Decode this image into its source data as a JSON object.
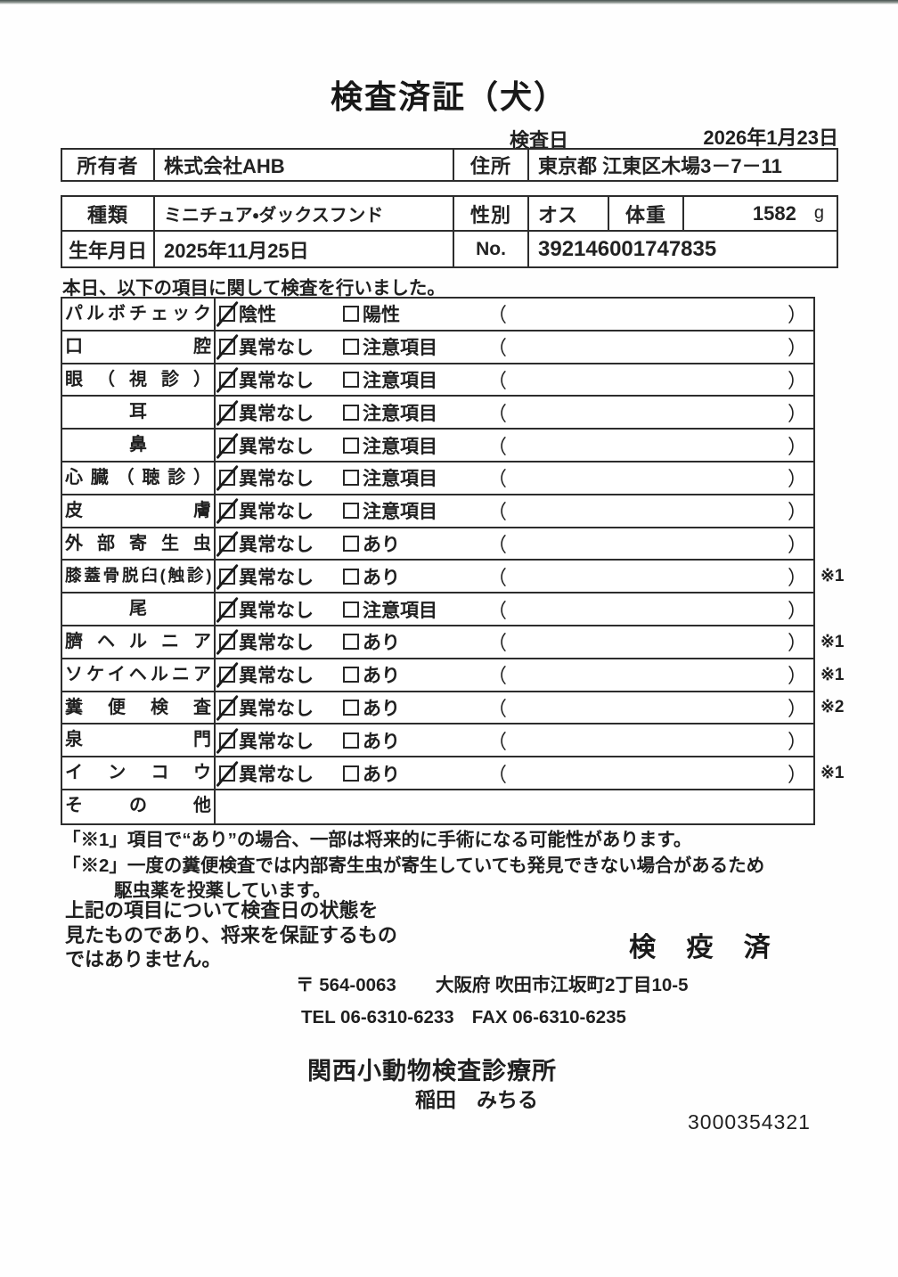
{
  "title": "検査済証（犬）",
  "inspection_date": {
    "label": "検査日",
    "value": "2026年1月23日"
  },
  "owner_table": {
    "owner_label": "所有者",
    "owner_value": "株式会社AHB",
    "address_label": "住所",
    "address_value": "東京都 江東区木場3－7－11"
  },
  "info_table": {
    "breed_label": "種類",
    "breed_value": "ミニチュア・ダックスフンド",
    "sex_label": "性別",
    "sex_value": "オス",
    "weight_label": "体重",
    "weight_value": "1582",
    "weight_unit": "g",
    "birth_label": "生年月日",
    "birth_value": "2025年11月25日",
    "no_label": "No.",
    "no_value": "392146001747835"
  },
  "intro": "本日、以下の項目に関して検査を行いました。",
  "checklist": {
    "paren_open": "（",
    "paren_close": "）",
    "rows": [
      {
        "label": "パルボチェック",
        "style": "justify",
        "opt1": "陰性",
        "opt1_checked": true,
        "opt2": "陽性",
        "opt2_checked": false,
        "note": ""
      },
      {
        "label": "口腔",
        "style": "justify",
        "opt1": "異常なし",
        "opt1_checked": true,
        "opt2": "注意項目",
        "opt2_checked": false,
        "note": ""
      },
      {
        "label": "眼（視診）",
        "style": "justify",
        "opt1": "異常なし",
        "opt1_checked": true,
        "opt2": "注意項目",
        "opt2_checked": false,
        "note": ""
      },
      {
        "label": "耳",
        "style": "center",
        "opt1": "異常なし",
        "opt1_checked": true,
        "opt2": "注意項目",
        "opt2_checked": false,
        "note": ""
      },
      {
        "label": "鼻",
        "style": "center",
        "opt1": "異常なし",
        "opt1_checked": true,
        "opt2": "注意項目",
        "opt2_checked": false,
        "note": ""
      },
      {
        "label": "心臓（聴診）",
        "style": "justify",
        "opt1": "異常なし",
        "opt1_checked": true,
        "opt2": "注意項目",
        "opt2_checked": false,
        "note": ""
      },
      {
        "label": "皮膚",
        "style": "justify",
        "opt1": "異常なし",
        "opt1_checked": true,
        "opt2": "注意項目",
        "opt2_checked": false,
        "note": ""
      },
      {
        "label": "外部寄生虫",
        "style": "justify",
        "opt1": "異常なし",
        "opt1_checked": true,
        "opt2": "あり",
        "opt2_checked": false,
        "note": ""
      },
      {
        "label": "膝蓋骨脱臼(触診)",
        "style": "tight",
        "opt1": "異常なし",
        "opt1_checked": true,
        "opt2": "あり",
        "opt2_checked": false,
        "note": "※1"
      },
      {
        "label": "尾",
        "style": "center",
        "opt1": "異常なし",
        "opt1_checked": true,
        "opt2": "注意項目",
        "opt2_checked": false,
        "note": ""
      },
      {
        "label": "臍ヘルニア",
        "style": "justify",
        "opt1": "異常なし",
        "opt1_checked": true,
        "opt2": "あり",
        "opt2_checked": false,
        "note": "※1"
      },
      {
        "label": "ソケイヘルニア",
        "style": "justify",
        "opt1": "異常なし",
        "opt1_checked": true,
        "opt2": "あり",
        "opt2_checked": false,
        "note": "※1"
      },
      {
        "label": "糞便検査",
        "style": "justify",
        "opt1": "異常なし",
        "opt1_checked": true,
        "opt2": "あり",
        "opt2_checked": false,
        "note": "※2"
      },
      {
        "label": "泉門",
        "style": "justify",
        "opt1": "異常なし",
        "opt1_checked": true,
        "opt2": "あり",
        "opt2_checked": false,
        "note": ""
      },
      {
        "label": "インコウ",
        "style": "justify",
        "opt1": "異常なし",
        "opt1_checked": true,
        "opt2": "あり",
        "opt2_checked": false,
        "note": "※1"
      },
      {
        "label": "その他",
        "style": "justify",
        "empty": true,
        "note": ""
      }
    ]
  },
  "notes": [
    "「※1」項目で“あり”の場合、一部は将来的に手術になる可能性があります。",
    "「※2」一度の糞便検査では内部寄生虫が寄生していても発見できない場合があるため",
    "駆虫薬を投薬しています。"
  ],
  "disclaimer_lines": [
    "上記の項目について検査日の状態を",
    "見たものであり、将来を保証するもの",
    "ではありません。"
  ],
  "quarantine_stamp": "検 疫 済",
  "clinic": {
    "postal": "〒 564-0063",
    "address": "大阪府 吹田市江坂町2丁目10-5",
    "tel": "TEL 06-6310-6233",
    "fax": "FAX 06-6310-6235",
    "name": "関西小動物検査診療所",
    "vet": "稲田　みちる",
    "serial": "3000354321"
  }
}
